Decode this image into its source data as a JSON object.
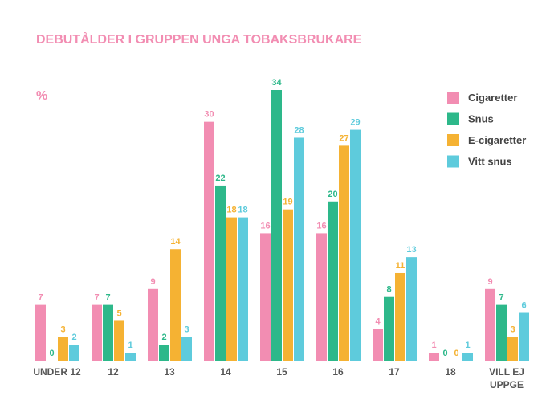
{
  "chart_data": {
    "type": "bar",
    "title": "DEBUTÅLDER I GRUPPEN UNGA TOBAKSBRUKARE",
    "unit_label": "%",
    "categories": [
      "UNDER 12",
      "12",
      "13",
      "14",
      "15",
      "16",
      "17",
      "18",
      "VILL EJ UPPGE"
    ],
    "series": [
      {
        "name": "Cigaretter",
        "color": "#f28db2",
        "values": [
          7,
          7,
          9,
          30,
          16,
          16,
          4,
          1,
          9
        ]
      },
      {
        "name": "Snus",
        "color": "#2db88a",
        "values": [
          0,
          7,
          2,
          22,
          34,
          20,
          8,
          0,
          7
        ]
      },
      {
        "name": "E-cigaretter",
        "color": "#f5b233",
        "values": [
          3,
          5,
          14,
          18,
          19,
          27,
          11,
          0,
          3
        ]
      },
      {
        "name": "Vitt snus",
        "color": "#5ecbdc",
        "values": [
          2,
          1,
          3,
          18,
          28,
          29,
          13,
          1,
          6
        ]
      }
    ],
    "legend": "top-right"
  }
}
